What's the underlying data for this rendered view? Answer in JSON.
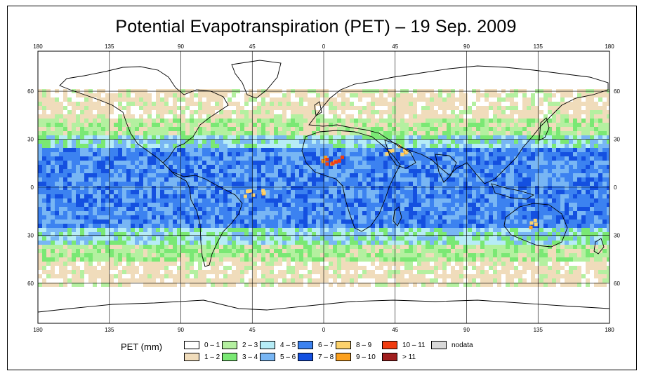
{
  "title": "Potential Evapotranspiration (PET) – 19 Sep. 2009",
  "legend": {
    "title": "PET (mm)",
    "items": [
      {
        "label": "0 – 1",
        "color": "#ffffff",
        "name": "legend-0-1"
      },
      {
        "label": "1 – 2",
        "color": "#f0dcbb",
        "name": "legend-1-2"
      },
      {
        "label": "2 – 3",
        "color": "#b4f0a0",
        "name": "legend-2-3"
      },
      {
        "label": "3 – 4",
        "color": "#7ae874",
        "name": "legend-3-4"
      },
      {
        "label": "4 – 5",
        "color": "#b6ecf6",
        "name": "legend-4-5"
      },
      {
        "label": "5 – 6",
        "color": "#78b6f4",
        "name": "legend-5-6"
      },
      {
        "label": "6 – 7",
        "color": "#3c82f0",
        "name": "legend-6-7"
      },
      {
        "label": "7 – 8",
        "color": "#1450e0",
        "name": "legend-7-8"
      },
      {
        "label": "8 – 9",
        "color": "#fcd26c",
        "name": "legend-8-9"
      },
      {
        "label": "9 – 10",
        "color": "#fca01c",
        "name": "legend-9-10"
      },
      {
        "label": "10 – 11",
        "color": "#f03c10",
        "name": "legend-10-11"
      },
      {
        "label": "> 11",
        "color": "#a01e1e",
        "name": "legend-gt-11"
      },
      {
        "label": "nodata",
        "color": "#d8d8d8",
        "name": "legend-nodata"
      }
    ]
  },
  "axes": {
    "lon_ticks": [
      "180",
      "135",
      "90",
      "45",
      "0",
      "45",
      "90",
      "135",
      "180"
    ],
    "lat_ticks": [
      "60",
      "30",
      "0",
      "30",
      "60"
    ],
    "lon_values": [
      -180,
      -135,
      -90,
      -45,
      0,
      45,
      90,
      135,
      180
    ],
    "lat_values": [
      60,
      30,
      0,
      -30,
      -60
    ],
    "lon_range": [
      -180,
      180
    ],
    "lat_range": [
      -85,
      85
    ]
  },
  "colors": {
    "coastline": "#000000",
    "grid": "#000000"
  }
}
